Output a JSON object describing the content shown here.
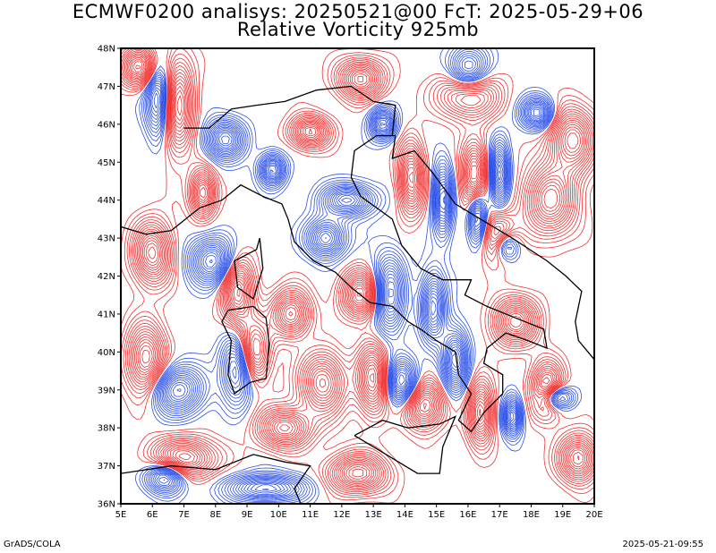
{
  "header": {
    "line1": "ECMWF0200 analisys: 20250521@00 FcT: 2025-05-29+06",
    "line2": "Relative Vorticity 925mb"
  },
  "footer": {
    "left": "GrADS/COLA",
    "right": "2025-05-21-09:55"
  },
  "map": {
    "projection": "lat-lon",
    "lon_range": [
      5,
      20
    ],
    "lat_range": [
      36,
      48
    ],
    "lon_ticks": [
      "5E",
      "6E",
      "7E",
      "8E",
      "9E",
      "10E",
      "11E",
      "12E",
      "13E",
      "14E",
      "15E",
      "16E",
      "17E",
      "18E",
      "19E",
      "20E"
    ],
    "lat_ticks": [
      "36N",
      "37N",
      "38N",
      "39N",
      "40N",
      "41N",
      "42N",
      "43N",
      "44N",
      "45N",
      "46N",
      "47N",
      "48N"
    ],
    "colors": {
      "positive_contours": "#f03030",
      "negative_contours": "#2a4fe8",
      "coastline": "#000000",
      "frame": "#000000"
    },
    "field": "Relative Vorticity",
    "level": "925mb"
  }
}
